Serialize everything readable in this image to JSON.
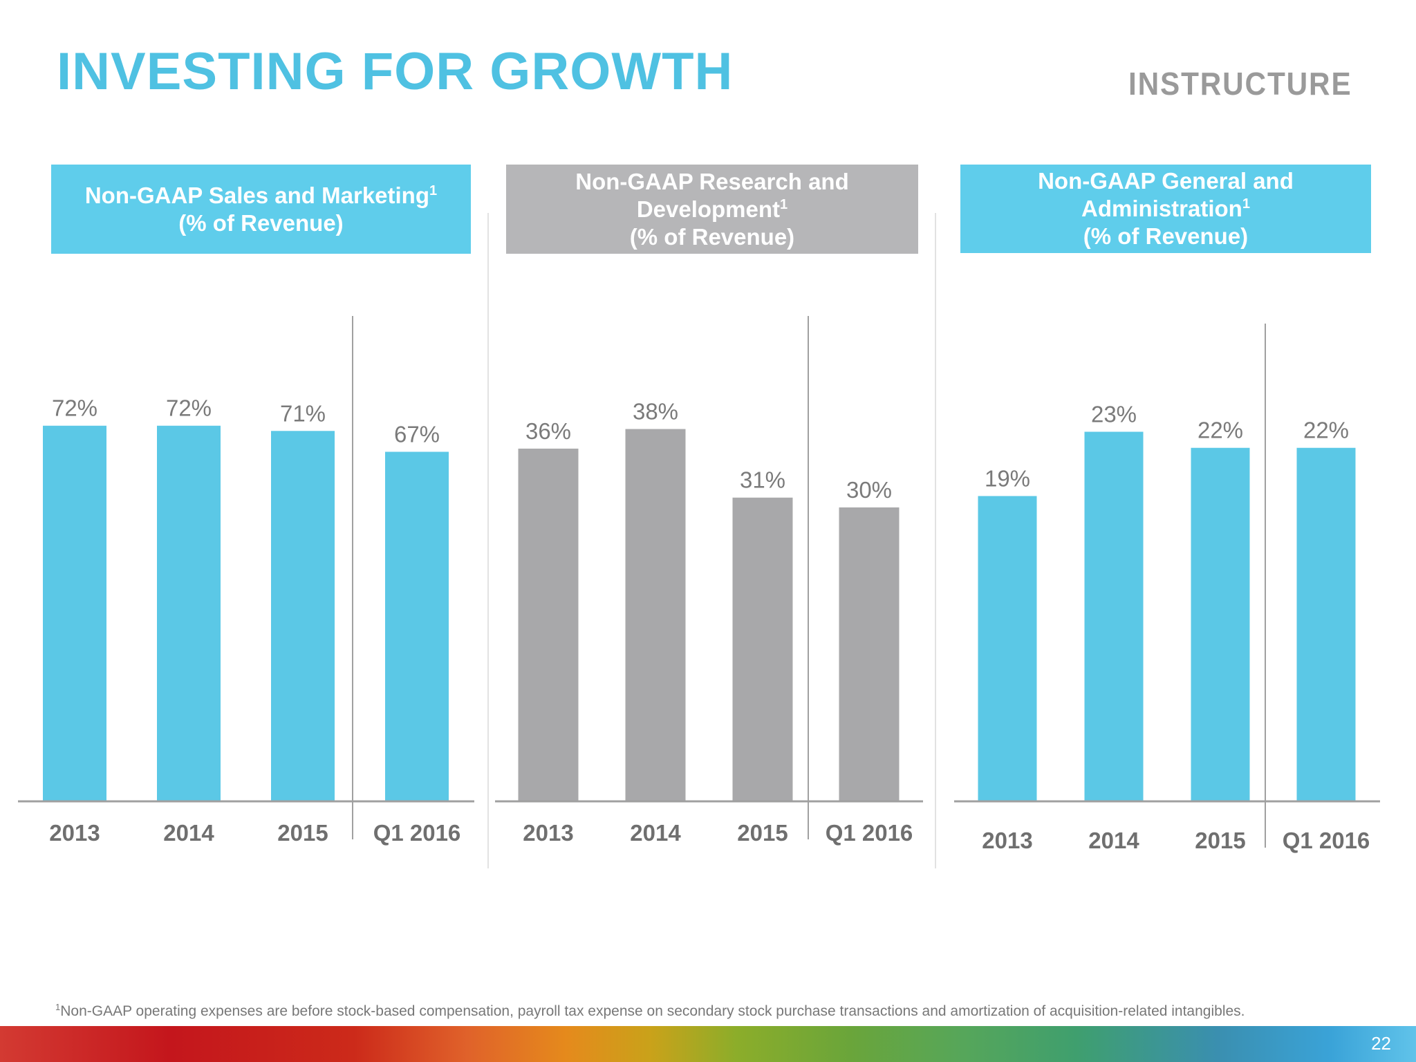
{
  "slide": {
    "title": "INVESTING FOR GROWTH",
    "logo_text": "INSTRUCTURE",
    "footnote_marker": "1",
    "footnote": "Non-GAAP operating expenses are before stock-based compensation, payroll tax expense on secondary stock purchase transactions and amortization of acquisition-related intangibles.",
    "page_number": "22"
  },
  "colors": {
    "title": "#4fc1e2",
    "blue_bar": "#5bc8e6",
    "gray_bar": "#a8a8aa",
    "blue_header": "#5fcdeb",
    "gray_header": "#b6b6b8",
    "value_label": "#7a7a7a",
    "axis_label": "#6f6f6f",
    "axis": "#a0a0a0"
  },
  "chart_data": [
    {
      "type": "bar",
      "title_lines": [
        "Non-GAAP Sales and Marketing",
        "(% of Revenue)"
      ],
      "title_superscript": "1",
      "categories": [
        "2013",
        "2014",
        "2015",
        "Q1 2016"
      ],
      "values": [
        72,
        72,
        71,
        67
      ],
      "value_labels": [
        "72%",
        "72%",
        "71%",
        "67%"
      ],
      "ylim": [
        0,
        77
      ],
      "color": "#5bc8e6",
      "divider_before_last": true
    },
    {
      "type": "bar",
      "title_lines": [
        "Non-GAAP Research and",
        "Development",
        "(% of Revenue)"
      ],
      "title_superscript": "1",
      "categories": [
        "2013",
        "2014",
        "2015",
        "Q1 2016"
      ],
      "values": [
        36,
        38,
        31,
        30
      ],
      "value_labels": [
        "36%",
        "38%",
        "31%",
        "30%"
      ],
      "ylim": [
        0,
        41
      ],
      "color": "#a8a8aa",
      "divider_before_last": true
    },
    {
      "type": "bar",
      "title_lines": [
        "Non-GAAP General and",
        "Administration",
        "(% of Revenue)"
      ],
      "title_superscript": "1",
      "categories": [
        "2013",
        "2014",
        "2015",
        "Q1 2016"
      ],
      "values": [
        19,
        23,
        22,
        22
      ],
      "value_labels": [
        "19%",
        "23%",
        "22%",
        "22%"
      ],
      "ylim": [
        0,
        25
      ],
      "color": "#5bc8e6",
      "divider_before_last": true
    }
  ]
}
